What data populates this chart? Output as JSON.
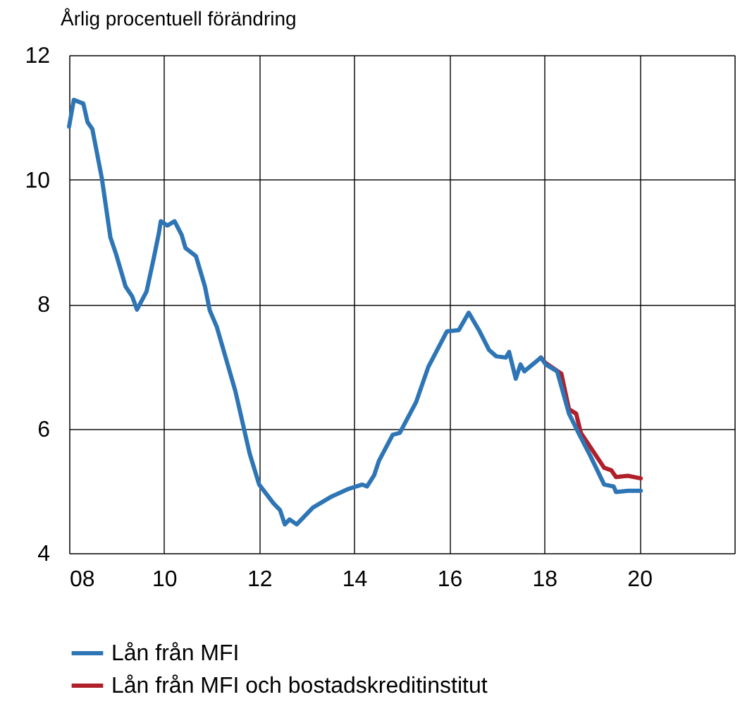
{
  "chart_data": {
    "type": "line",
    "ylabel": "Årlig procentuell förändring",
    "xlim": [
      8,
      22
    ],
    "xticks": [
      {
        "value": 8,
        "label": "08"
      },
      {
        "value": 10,
        "label": "10"
      },
      {
        "value": 12,
        "label": "12"
      },
      {
        "value": 14,
        "label": "14"
      },
      {
        "value": 16,
        "label": "16"
      },
      {
        "value": 18,
        "label": "18"
      },
      {
        "value": 20,
        "label": "20"
      },
      {
        "value": 22,
        "label": null
      }
    ],
    "ylim": [
      4,
      12
    ],
    "yticks": [
      4,
      6,
      8,
      10,
      12
    ],
    "grid": true,
    "legend": "bottom",
    "series": [
      {
        "name": "Lån från MFI",
        "color": "#2e75b6",
        "x": [
          8.0,
          8.1,
          8.3,
          8.39,
          8.49,
          8.69,
          8.87,
          8.99,
          9.19,
          9.33,
          9.43,
          9.63,
          9.78,
          9.89,
          9.93,
          10.07,
          10.22,
          10.37,
          10.45,
          10.67,
          10.86,
          10.96,
          11.11,
          11.5,
          11.8,
          12.0,
          12.3,
          12.44,
          12.54,
          12.64,
          12.79,
          13.13,
          13.53,
          13.88,
          14.17,
          14.27,
          14.42,
          14.52,
          14.81,
          14.96,
          15.3,
          15.56,
          15.95,
          16.2,
          16.41,
          16.64,
          16.84,
          16.99,
          17.19,
          17.26,
          17.4,
          17.5,
          17.58,
          17.93,
          18.03,
          18.27,
          18.52,
          18.72,
          18.97,
          19.26,
          19.46,
          19.51,
          19.76,
          20.03
        ],
        "values": [
          10.85,
          11.28,
          11.22,
          10.92,
          10.81,
          10.02,
          9.07,
          8.8,
          8.28,
          8.12,
          7.91,
          8.2,
          8.73,
          9.14,
          9.33,
          9.26,
          9.33,
          9.11,
          8.9,
          8.77,
          8.28,
          7.9,
          7.63,
          6.6,
          5.6,
          5.1,
          4.8,
          4.69,
          4.46,
          4.54,
          4.46,
          4.73,
          4.91,
          5.03,
          5.1,
          5.07,
          5.25,
          5.48,
          5.9,
          5.93,
          6.42,
          6.99,
          7.56,
          7.58,
          7.86,
          7.56,
          7.26,
          7.16,
          7.14,
          7.23,
          6.8,
          7.03,
          6.92,
          7.14,
          7.03,
          6.92,
          6.24,
          5.93,
          5.56,
          5.1,
          5.07,
          4.98,
          5.0,
          5.0
        ]
      },
      {
        "name": "Lån från MFI och bostadskreditinstitut",
        "color": "#b0202a",
        "x": [
          17.93,
          18.03,
          18.36,
          18.52,
          18.67,
          18.77,
          19.26,
          19.41,
          19.51,
          19.76,
          20.03
        ],
        "values": [
          7.14,
          7.05,
          6.88,
          6.31,
          6.24,
          5.93,
          5.37,
          5.33,
          5.22,
          5.24,
          5.2
        ]
      }
    ]
  }
}
